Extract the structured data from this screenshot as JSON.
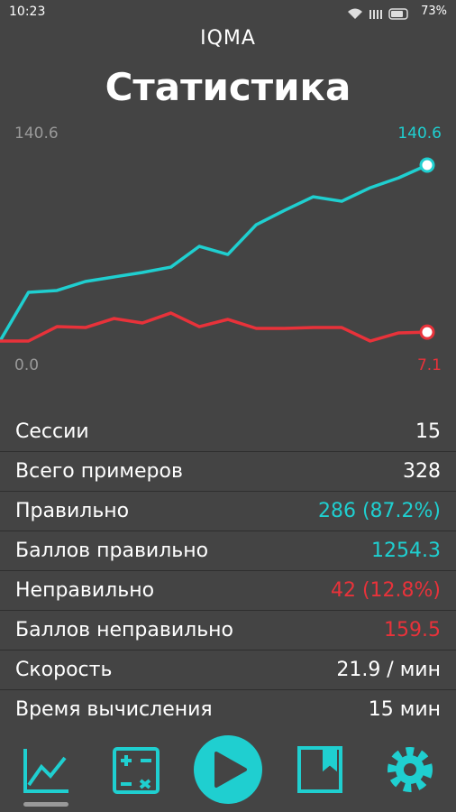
{
  "status_bar": {
    "time": "10:23",
    "battery": "73%"
  },
  "header": {
    "app_name": "IQMA",
    "title": "Статистика"
  },
  "chart_data": {
    "type": "line",
    "ylim": [
      0,
      140.6
    ],
    "yticks": [
      {
        "value": 0,
        "label": "0.0"
      },
      140.6
    ],
    "series": [
      {
        "color": "#1fcfd0",
        "values": [
          0,
          38.9,
          40.4,
          47.6,
          51.2,
          54.8,
          59.1,
          75.7,
          69.2,
          93.0,
          104.5,
          115.3,
          111.7,
          122.5,
          130.4,
          140.6
        ]
      },
      {
        "color": "#e8323a",
        "values": [
          0,
          0,
          11.5,
          10.8,
          18.0,
          14.4,
          22.4,
          11.5,
          17.3,
          10.1,
          10.1,
          10.8,
          10.8,
          0,
          6.5,
          7.1
        ]
      }
    ]
  },
  "stats": [
    {
      "label": "Сессии",
      "value": "15",
      "color": "#ffffff"
    },
    {
      "label": "Всего примеров",
      "value": "328",
      "color": "#ffffff"
    },
    {
      "label": "Правильно",
      "value": "286 (87.2%)",
      "color": "#1fcfd0"
    },
    {
      "label": "Баллов правильно",
      "value": "1254.3",
      "color": "#1fcfd0"
    },
    {
      "label": "Неправильно",
      "value": "42 (12.8%)",
      "color": "#e8323a"
    },
    {
      "label": "Баллов неправильно",
      "value": "159.5",
      "color": "#e8323a"
    },
    {
      "label": "Скорость",
      "value": "21.9 / мин",
      "color": "#ffffff"
    },
    {
      "label": "Время вычисления",
      "value": "15 мин",
      "color": "#ffffff"
    }
  ]
}
